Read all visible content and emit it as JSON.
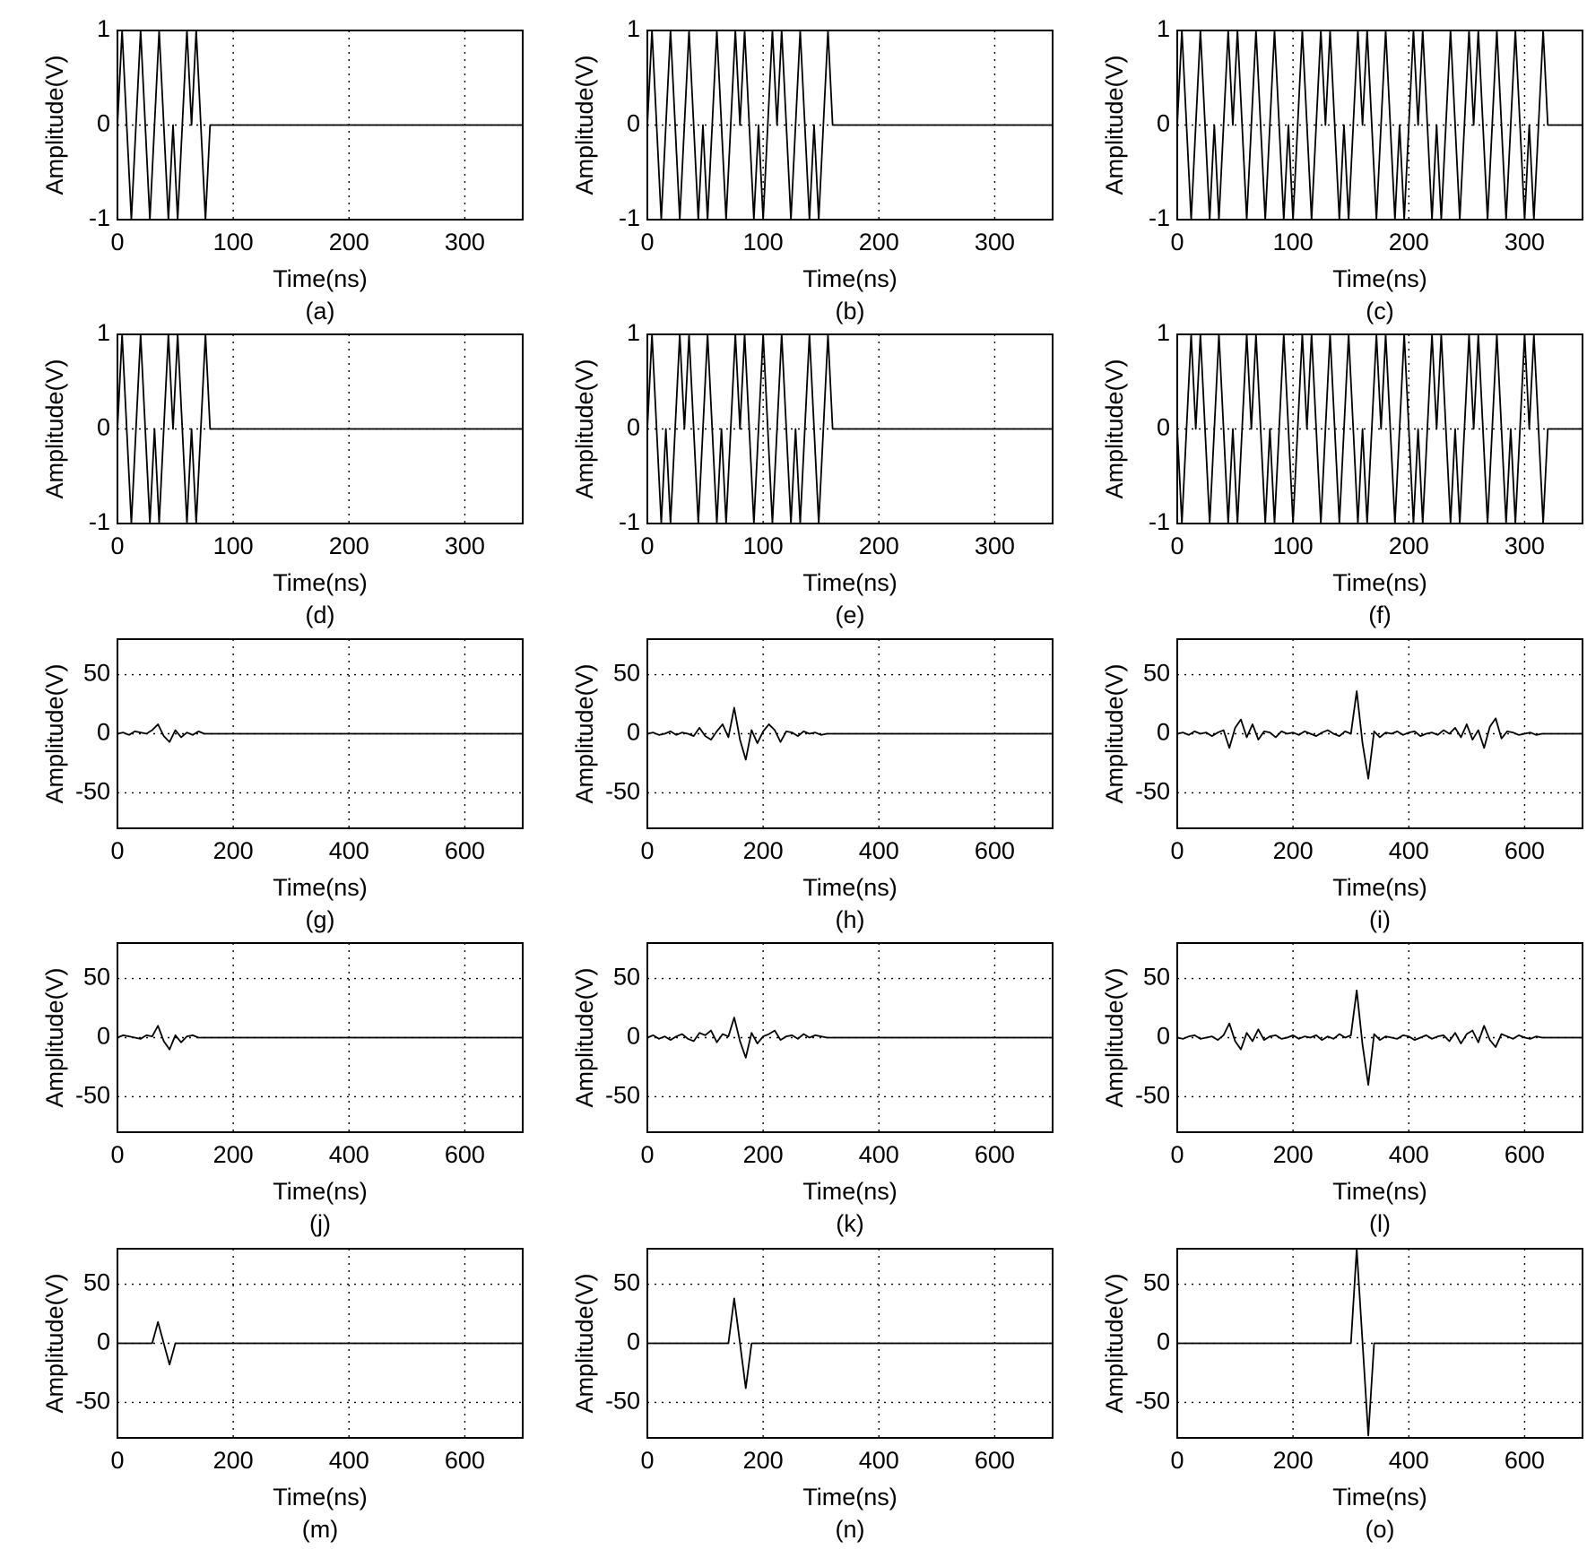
{
  "chart_data": [
    {
      "type": "line",
      "caption": "(a)",
      "xlabel": "Time(ns)",
      "ylabel": "Amplitude(V)",
      "xlim": [
        0,
        350
      ],
      "ylim": [
        -1,
        1
      ],
      "xticks": [
        0,
        100,
        200,
        300
      ],
      "yticks": [
        -1,
        0,
        1
      ],
      "grid": true,
      "color": "#000000",
      "x": [
        0,
        4,
        8,
        12,
        16,
        20,
        24,
        28,
        32,
        36,
        40,
        44,
        48,
        52,
        56,
        60,
        64,
        68,
        72,
        76,
        80,
        350
      ],
      "values": [
        0,
        1,
        0,
        -1,
        0,
        1,
        0,
        -1,
        0,
        1,
        0,
        -1,
        0,
        -1,
        0,
        1,
        0,
        1,
        0,
        -1,
        0,
        0
      ]
    },
    {
      "type": "line",
      "caption": "(b)",
      "xlabel": "Time(ns)",
      "ylabel": "Amplitude(V)",
      "xlim": [
        0,
        350
      ],
      "ylim": [
        -1,
        1
      ],
      "xticks": [
        0,
        100,
        200,
        300
      ],
      "yticks": [
        -1,
        0,
        1
      ],
      "grid": true,
      "color": "#000000",
      "x": [
        0,
        4,
        8,
        12,
        16,
        20,
        24,
        28,
        32,
        36,
        40,
        44,
        48,
        52,
        56,
        60,
        64,
        68,
        72,
        76,
        80,
        84,
        88,
        92,
        96,
        100,
        104,
        108,
        112,
        116,
        120,
        124,
        128,
        132,
        136,
        140,
        144,
        148,
        152,
        156,
        160,
        350
      ],
      "values": [
        0,
        1,
        0,
        -1,
        0,
        1,
        0,
        -1,
        0,
        1,
        0,
        -1,
        0,
        -1,
        0,
        1,
        0,
        -1,
        0,
        1,
        0,
        1,
        0,
        -1,
        0,
        -1,
        0,
        1,
        0,
        1,
        0,
        -1,
        0,
        1,
        0,
        -1,
        0,
        -1,
        0,
        1,
        0,
        0
      ]
    },
    {
      "type": "line",
      "caption": "(c)",
      "xlabel": "Time(ns)",
      "ylabel": "Amplitude(V)",
      "xlim": [
        0,
        350
      ],
      "ylim": [
        -1,
        1
      ],
      "xticks": [
        0,
        100,
        200,
        300
      ],
      "yticks": [
        -1,
        0,
        1
      ],
      "grid": true,
      "color": "#000000",
      "x": [
        0,
        4,
        8,
        12,
        16,
        20,
        24,
        28,
        32,
        36,
        40,
        44,
        48,
        52,
        56,
        60,
        64,
        68,
        72,
        76,
        80,
        84,
        88,
        92,
        96,
        100,
        104,
        108,
        112,
        116,
        120,
        124,
        128,
        132,
        136,
        140,
        144,
        148,
        152,
        156,
        160,
        164,
        168,
        172,
        176,
        180,
        184,
        188,
        192,
        196,
        200,
        204,
        208,
        212,
        216,
        220,
        224,
        228,
        232,
        236,
        240,
        244,
        248,
        252,
        256,
        260,
        264,
        268,
        272,
        276,
        280,
        284,
        288,
        292,
        296,
        300,
        304,
        308,
        312,
        316,
        320,
        350
      ],
      "values": [
        0,
        1,
        0,
        -1,
        0,
        1,
        0,
        -1,
        0,
        -1,
        0,
        1,
        0,
        1,
        0,
        -1,
        0,
        1,
        0,
        -1,
        0,
        1,
        0,
        -1,
        0,
        -1,
        0,
        1,
        0,
        -1,
        0,
        1,
        0,
        1,
        0,
        -1,
        0,
        -1,
        0,
        1,
        0,
        1,
        0,
        -1,
        0,
        1,
        0,
        -1,
        0,
        -1,
        0,
        1,
        0,
        1,
        0,
        -1,
        0,
        -1,
        0,
        1,
        0,
        -1,
        0,
        1,
        0,
        1,
        0,
        -1,
        0,
        1,
        0,
        -1,
        0,
        1,
        0,
        -1,
        0,
        -1,
        0,
        1,
        0,
        0
      ]
    },
    {
      "type": "line",
      "caption": "(d)",
      "xlabel": "Time(ns)",
      "ylabel": "Amplitude(V)",
      "xlim": [
        0,
        350
      ],
      "ylim": [
        -1,
        1
      ],
      "xticks": [
        0,
        100,
        200,
        300
      ],
      "yticks": [
        -1,
        0,
        1
      ],
      "grid": true,
      "color": "#000000",
      "x": [
        0,
        4,
        8,
        12,
        16,
        20,
        24,
        28,
        32,
        36,
        40,
        44,
        48,
        52,
        56,
        60,
        64,
        68,
        72,
        76,
        80,
        350
      ],
      "values": [
        0,
        1,
        0,
        -1,
        0,
        1,
        0,
        -1,
        0,
        -1,
        0,
        1,
        0,
        1,
        0,
        -1,
        0,
        -1,
        0,
        1,
        0,
        0
      ]
    },
    {
      "type": "line",
      "caption": "(e)",
      "xlabel": "Time(ns)",
      "ylabel": "Amplitude(V)",
      "xlim": [
        0,
        350
      ],
      "ylim": [
        -1,
        1
      ],
      "xticks": [
        0,
        100,
        200,
        300
      ],
      "yticks": [
        -1,
        0,
        1
      ],
      "grid": true,
      "color": "#000000",
      "x": [
        0,
        4,
        8,
        12,
        16,
        20,
        24,
        28,
        32,
        36,
        40,
        44,
        48,
        52,
        56,
        60,
        64,
        68,
        72,
        76,
        80,
        84,
        88,
        92,
        96,
        100,
        104,
        108,
        112,
        116,
        120,
        124,
        128,
        132,
        136,
        140,
        144,
        148,
        152,
        156,
        160,
        350
      ],
      "values": [
        0,
        1,
        0,
        -1,
        0,
        -1,
        0,
        1,
        0,
        1,
        0,
        -1,
        0,
        1,
        0,
        -1,
        0,
        -1,
        0,
        1,
        0,
        1,
        0,
        -1,
        0,
        1,
        0,
        -1,
        0,
        1,
        0,
        -1,
        0,
        -1,
        0,
        1,
        0,
        -1,
        0,
        1,
        0,
        0
      ]
    },
    {
      "type": "line",
      "caption": "(f)",
      "xlabel": "Time(ns)",
      "ylabel": "Amplitude(V)",
      "xlim": [
        0,
        350
      ],
      "ylim": [
        -1,
        1
      ],
      "xticks": [
        0,
        100,
        200,
        300
      ],
      "yticks": [
        -1,
        0,
        1
      ],
      "grid": true,
      "color": "#000000",
      "x": [
        0,
        4,
        8,
        12,
        16,
        20,
        24,
        28,
        32,
        36,
        40,
        44,
        48,
        52,
        56,
        60,
        64,
        68,
        72,
        76,
        80,
        84,
        88,
        92,
        96,
        100,
        104,
        108,
        112,
        116,
        120,
        124,
        128,
        132,
        136,
        140,
        144,
        148,
        152,
        156,
        160,
        164,
        168,
        172,
        176,
        180,
        184,
        188,
        192,
        196,
        200,
        204,
        208,
        212,
        216,
        220,
        224,
        228,
        232,
        236,
        240,
        244,
        248,
        252,
        256,
        260,
        264,
        268,
        272,
        276,
        280,
        284,
        288,
        292,
        296,
        300,
        304,
        308,
        312,
        316,
        320,
        350
      ],
      "values": [
        0,
        -1,
        0,
        1,
        0,
        1,
        0,
        -1,
        0,
        1,
        0,
        -1,
        0,
        -1,
        0,
        1,
        0,
        1,
        0,
        -1,
        0,
        -1,
        0,
        1,
        0,
        -1,
        0,
        1,
        0,
        1,
        0,
        -1,
        0,
        1,
        0,
        -1,
        0,
        1,
        0,
        -1,
        0,
        -1,
        0,
        1,
        0,
        1,
        0,
        -1,
        0,
        1,
        0,
        -1,
        0,
        -1,
        0,
        1,
        0,
        1,
        0,
        -1,
        0,
        -1,
        0,
        1,
        0,
        1,
        0,
        -1,
        0,
        1,
        0,
        -1,
        0,
        -1,
        0,
        1,
        0,
        1,
        0,
        -1,
        0,
        0
      ]
    },
    {
      "type": "line",
      "caption": "(g)",
      "xlabel": "Time(ns)",
      "ylabel": "Amplitude(V)",
      "xlim": [
        0,
        700
      ],
      "ylim": [
        -80,
        80
      ],
      "xticks": [
        0,
        200,
        400,
        600
      ],
      "yticks": [
        -50,
        0,
        50
      ],
      "grid": true,
      "color": "#000000",
      "x": [
        0,
        10,
        20,
        30,
        40,
        50,
        60,
        70,
        80,
        90,
        100,
        110,
        120,
        130,
        140,
        150,
        700
      ],
      "values": [
        0,
        1,
        -1,
        2,
        1,
        0,
        3,
        8,
        -2,
        -7,
        3,
        -3,
        1,
        -1,
        2,
        0,
        0
      ]
    },
    {
      "type": "line",
      "caption": "(h)",
      "xlabel": "Time(ns)",
      "ylabel": "Amplitude(V)",
      "xlim": [
        0,
        700
      ],
      "ylim": [
        -80,
        80
      ],
      "xticks": [
        0,
        200,
        400,
        600
      ],
      "yticks": [
        -50,
        0,
        50
      ],
      "grid": true,
      "color": "#000000",
      "x": [
        0,
        10,
        20,
        30,
        40,
        50,
        60,
        70,
        80,
        90,
        100,
        110,
        120,
        130,
        140,
        150,
        160,
        170,
        180,
        190,
        200,
        210,
        220,
        230,
        240,
        250,
        260,
        270,
        280,
        290,
        300,
        310,
        700
      ],
      "values": [
        0,
        1,
        -1,
        0,
        2,
        -1,
        1,
        0,
        -2,
        5,
        -2,
        -5,
        2,
        8,
        -3,
        22,
        -5,
        -22,
        3,
        -8,
        2,
        8,
        3,
        -7,
        2,
        1,
        -2,
        2,
        0,
        1,
        -1,
        0,
        0
      ]
    },
    {
      "type": "line",
      "caption": "(i)",
      "xlabel": "Time(ns)",
      "ylabel": "Amplitude(V)",
      "xlim": [
        0,
        700
      ],
      "ylim": [
        -80,
        80
      ],
      "xticks": [
        0,
        200,
        400,
        600
      ],
      "yticks": [
        -50,
        0,
        50
      ],
      "grid": true,
      "color": "#000000",
      "x": [
        0,
        10,
        20,
        30,
        40,
        50,
        60,
        70,
        80,
        90,
        100,
        110,
        120,
        130,
        140,
        150,
        160,
        170,
        180,
        190,
        200,
        210,
        220,
        230,
        240,
        250,
        260,
        270,
        280,
        290,
        300,
        310,
        320,
        330,
        340,
        350,
        360,
        370,
        380,
        390,
        400,
        410,
        420,
        430,
        440,
        450,
        460,
        470,
        480,
        490,
        500,
        510,
        520,
        530,
        540,
        550,
        560,
        570,
        580,
        590,
        600,
        610,
        620,
        630,
        700
      ],
      "values": [
        0,
        1,
        -1,
        2,
        0,
        1,
        -2,
        1,
        3,
        -12,
        5,
        12,
        -3,
        8,
        -5,
        2,
        1,
        -3,
        2,
        0,
        1,
        -1,
        2,
        0,
        -2,
        1,
        3,
        0,
        -2,
        2,
        0,
        36,
        -8,
        -38,
        2,
        -3,
        1,
        0,
        2,
        -1,
        1,
        2,
        -2,
        0,
        1,
        -1,
        3,
        0,
        5,
        -3,
        8,
        -5,
        3,
        -12,
        6,
        13,
        -4,
        2,
        1,
        -1,
        0,
        1,
        -1,
        0,
        0
      ]
    },
    {
      "type": "line",
      "caption": "(j)",
      "xlabel": "Time(ns)",
      "ylabel": "Amplitude(V)",
      "xlim": [
        0,
        700
      ],
      "ylim": [
        -80,
        80
      ],
      "xticks": [
        0,
        200,
        400,
        600
      ],
      "yticks": [
        -50,
        0,
        50
      ],
      "grid": true,
      "color": "#000000",
      "x": [
        0,
        10,
        20,
        30,
        40,
        50,
        60,
        70,
        80,
        90,
        100,
        110,
        120,
        130,
        140,
        150,
        700
      ],
      "values": [
        0,
        2,
        1,
        0,
        -1,
        2,
        1,
        10,
        -3,
        -10,
        2,
        -4,
        1,
        2,
        0,
        0,
        0
      ]
    },
    {
      "type": "line",
      "caption": "(k)",
      "xlabel": "Time(ns)",
      "ylabel": "Amplitude(V)",
      "xlim": [
        0,
        700
      ],
      "ylim": [
        -80,
        80
      ],
      "xticks": [
        0,
        200,
        400,
        600
      ],
      "yticks": [
        -50,
        0,
        50
      ],
      "grid": true,
      "color": "#000000",
      "x": [
        0,
        10,
        20,
        30,
        40,
        50,
        60,
        70,
        80,
        90,
        100,
        110,
        120,
        130,
        140,
        150,
        160,
        170,
        180,
        190,
        200,
        210,
        220,
        230,
        240,
        250,
        260,
        270,
        280,
        290,
        300,
        310,
        700
      ],
      "values": [
        0,
        2,
        -1,
        1,
        -2,
        1,
        3,
        -1,
        -3,
        4,
        2,
        6,
        -4,
        3,
        1,
        17,
        -3,
        -17,
        4,
        -5,
        1,
        3,
        6,
        -2,
        1,
        2,
        -1,
        3,
        0,
        2,
        1,
        0,
        0
      ]
    },
    {
      "type": "line",
      "caption": "(l)",
      "xlabel": "Time(ns)",
      "ylabel": "Amplitude(V)",
      "xlim": [
        0,
        700
      ],
      "ylim": [
        -80,
        80
      ],
      "xticks": [
        0,
        200,
        400,
        600
      ],
      "yticks": [
        -50,
        0,
        50
      ],
      "grid": true,
      "color": "#000000",
      "x": [
        0,
        10,
        20,
        30,
        40,
        50,
        60,
        70,
        80,
        90,
        100,
        110,
        120,
        130,
        140,
        150,
        160,
        170,
        180,
        190,
        200,
        210,
        220,
        230,
        240,
        250,
        260,
        270,
        280,
        290,
        300,
        310,
        320,
        330,
        340,
        350,
        360,
        370,
        380,
        390,
        400,
        410,
        420,
        430,
        440,
        450,
        460,
        470,
        480,
        490,
        500,
        510,
        520,
        530,
        540,
        550,
        560,
        570,
        580,
        590,
        600,
        610,
        620,
        630,
        700
      ],
      "values": [
        0,
        -1,
        1,
        2,
        -1,
        0,
        1,
        -2,
        2,
        12,
        -3,
        -10,
        4,
        -3,
        7,
        -2,
        1,
        2,
        -1,
        0,
        2,
        -1,
        1,
        0,
        2,
        -2,
        1,
        -1,
        3,
        0,
        2,
        40,
        -6,
        -40,
        3,
        -2,
        1,
        0,
        -1,
        2,
        1,
        -2,
        0,
        2,
        -1,
        1,
        2,
        -3,
        4,
        -5,
        3,
        6,
        -4,
        10,
        -2,
        -8,
        3,
        1,
        -1,
        2,
        0,
        -1,
        1,
        0,
        0
      ]
    },
    {
      "type": "line",
      "caption": "(m)",
      "xlabel": "Time(ns)",
      "ylabel": "Amplitude(V)",
      "xlim": [
        0,
        700
      ],
      "ylim": [
        -80,
        80
      ],
      "xticks": [
        0,
        200,
        400,
        600
      ],
      "yticks": [
        -50,
        0,
        50
      ],
      "grid": true,
      "color": "#000000",
      "x": [
        0,
        60,
        70,
        90,
        100,
        700
      ],
      "values": [
        0,
        0,
        18,
        -18,
        0,
        0
      ]
    },
    {
      "type": "line",
      "caption": "(n)",
      "xlabel": "Time(ns)",
      "ylabel": "Amplitude(V)",
      "xlim": [
        0,
        700
      ],
      "ylim": [
        -80,
        80
      ],
      "xticks": [
        0,
        200,
        400,
        600
      ],
      "yticks": [
        -50,
        0,
        50
      ],
      "grid": true,
      "color": "#000000",
      "x": [
        0,
        140,
        150,
        170,
        180,
        700
      ],
      "values": [
        0,
        0,
        38,
        -38,
        0,
        0
      ]
    },
    {
      "type": "line",
      "caption": "(o)",
      "xlabel": "Time(ns)",
      "ylabel": "Amplitude(V)",
      "xlim": [
        0,
        700
      ],
      "ylim": [
        -80,
        80
      ],
      "xticks": [
        0,
        200,
        400,
        600
      ],
      "yticks": [
        -50,
        0,
        50
      ],
      "grid": true,
      "color": "#000000",
      "x": [
        0,
        300,
        310,
        330,
        340,
        700
      ],
      "values": [
        0,
        0,
        80,
        -78,
        0,
        0
      ]
    }
  ]
}
